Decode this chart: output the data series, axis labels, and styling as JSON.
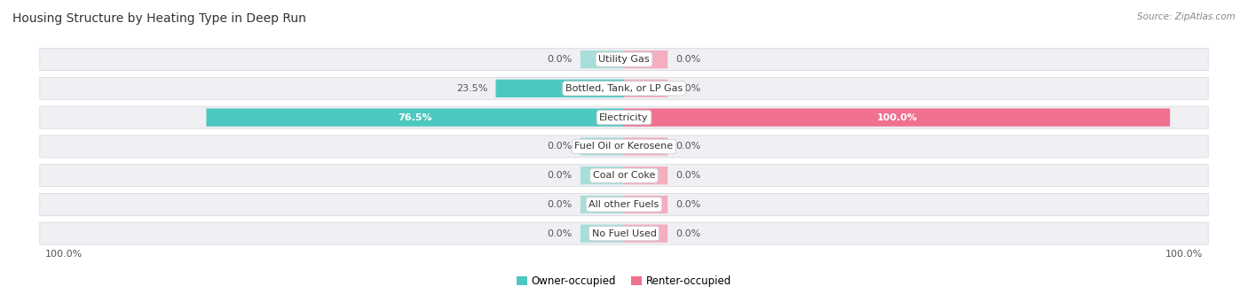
{
  "title": "Housing Structure by Heating Type in Deep Run",
  "source": "Source: ZipAtlas.com",
  "categories": [
    "Utility Gas",
    "Bottled, Tank, or LP Gas",
    "Electricity",
    "Fuel Oil or Kerosene",
    "Coal or Coke",
    "All other Fuels",
    "No Fuel Used"
  ],
  "owner_values": [
    0.0,
    23.5,
    76.5,
    0.0,
    0.0,
    0.0,
    0.0
  ],
  "renter_values": [
    0.0,
    0.0,
    100.0,
    0.0,
    0.0,
    0.0,
    0.0
  ],
  "owner_color": "#4dc8c0",
  "owner_color_light": "#a8deda",
  "renter_color": "#f07090",
  "renter_color_light": "#f4aec0",
  "row_bg_color": "#f0f0f4",
  "row_border_color": "#d8d8e0",
  "title_fontsize": 10,
  "label_fontsize": 8,
  "category_fontsize": 8,
  "legend_fontsize": 8.5,
  "source_fontsize": 7.5,
  "axis_label_fontsize": 8,
  "figsize": [
    14.06,
    3.41
  ],
  "dpi": 100,
  "stub_size": 8.0,
  "xlim": 100.0
}
